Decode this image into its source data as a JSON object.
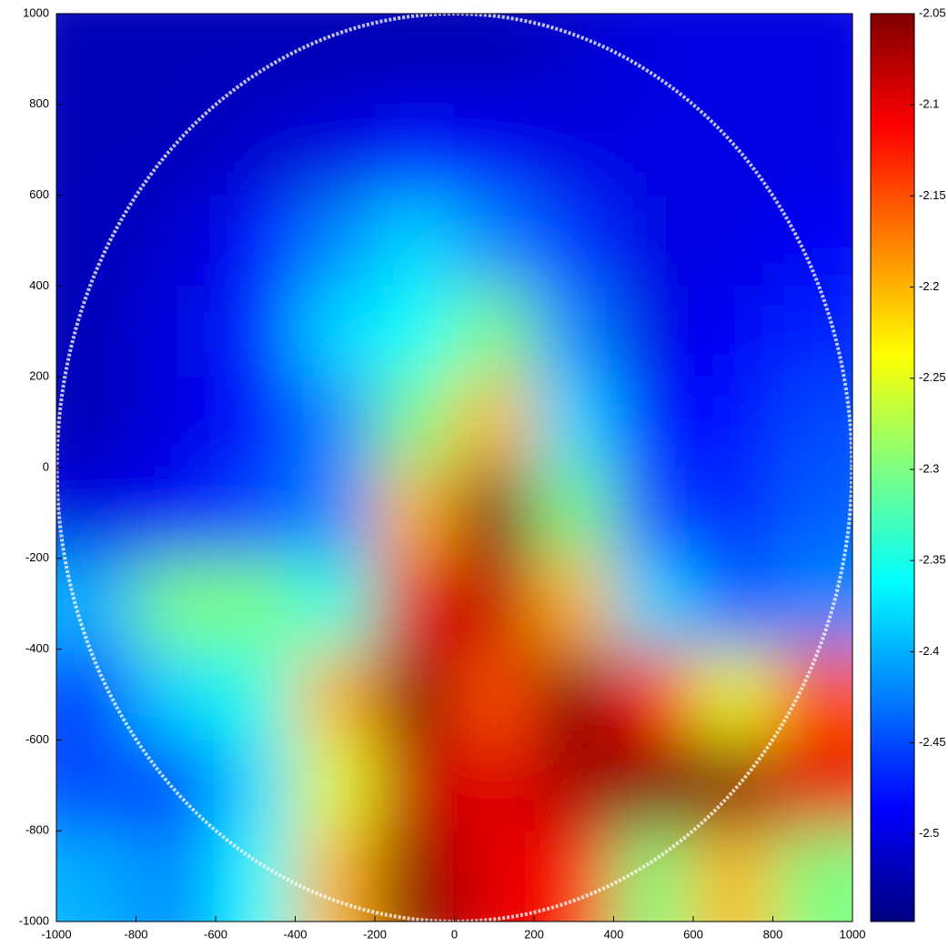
{
  "chart_data": {
    "type": "heatmap",
    "colormap": "jet",
    "x": [
      -900,
      -700,
      -500,
      -300,
      -100,
      100,
      300,
      500,
      700,
      900
    ],
    "y": [
      900,
      700,
      500,
      300,
      100,
      -100,
      -300,
      -500,
      -700,
      -900
    ],
    "z": [
      [
        -2.52,
        -2.52,
        -2.52,
        -2.52,
        -2.52,
        -2.52,
        -2.51,
        -2.5,
        -2.5,
        -2.5
      ],
      [
        -2.52,
        -2.52,
        -2.51,
        -2.5,
        -2.48,
        -2.49,
        -2.5,
        -2.5,
        -2.5,
        -2.5
      ],
      [
        -2.52,
        -2.51,
        -2.48,
        -2.42,
        -2.38,
        -2.42,
        -2.46,
        -2.5,
        -2.5,
        -2.49
      ],
      [
        -2.52,
        -2.5,
        -2.47,
        -2.38,
        -2.36,
        -2.3,
        -2.42,
        -2.5,
        -2.49,
        -2.47
      ],
      [
        -2.52,
        -2.5,
        -2.48,
        -2.42,
        -2.3,
        -2.2,
        -2.38,
        -2.48,
        -2.48,
        -2.45
      ],
      [
        -2.5,
        -2.49,
        -2.45,
        -2.42,
        -2.2,
        -2.05,
        -2.3,
        -2.45,
        -2.47,
        -2.44
      ],
      [
        -2.4,
        -2.3,
        -2.3,
        -2.35,
        -2.1,
        -2.08,
        -2.2,
        -2.38,
        -2.44,
        -2.42
      ],
      [
        -2.45,
        -2.38,
        -2.35,
        -2.2,
        -2.05,
        -2.15,
        -2.05,
        -2.12,
        -2.25,
        -2.15
      ],
      [
        -2.45,
        -2.45,
        -2.38,
        -2.25,
        -2.08,
        -2.1,
        -2.07,
        -2.05,
        -2.05,
        -2.1
      ],
      [
        -2.4,
        -2.42,
        -2.36,
        -2.2,
        -2.05,
        -2.1,
        -2.12,
        -2.3,
        -2.2,
        -2.3
      ]
    ],
    "xlim": [
      -1000,
      1000
    ],
    "ylim": [
      -1000,
      1000
    ],
    "xticks": [
      -1000,
      -800,
      -600,
      -400,
      -200,
      0,
      200,
      400,
      600,
      800,
      1000
    ],
    "yticks": [
      -1000,
      -800,
      -600,
      -400,
      -200,
      0,
      200,
      400,
      600,
      800,
      1000
    ],
    "clim": [
      -2.548,
      -2.05
    ],
    "cticks": [
      -2.05,
      -2.1,
      -2.15,
      -2.2,
      -2.25,
      -2.3,
      -2.35,
      -2.4,
      -2.45,
      -2.5
    ]
  }
}
